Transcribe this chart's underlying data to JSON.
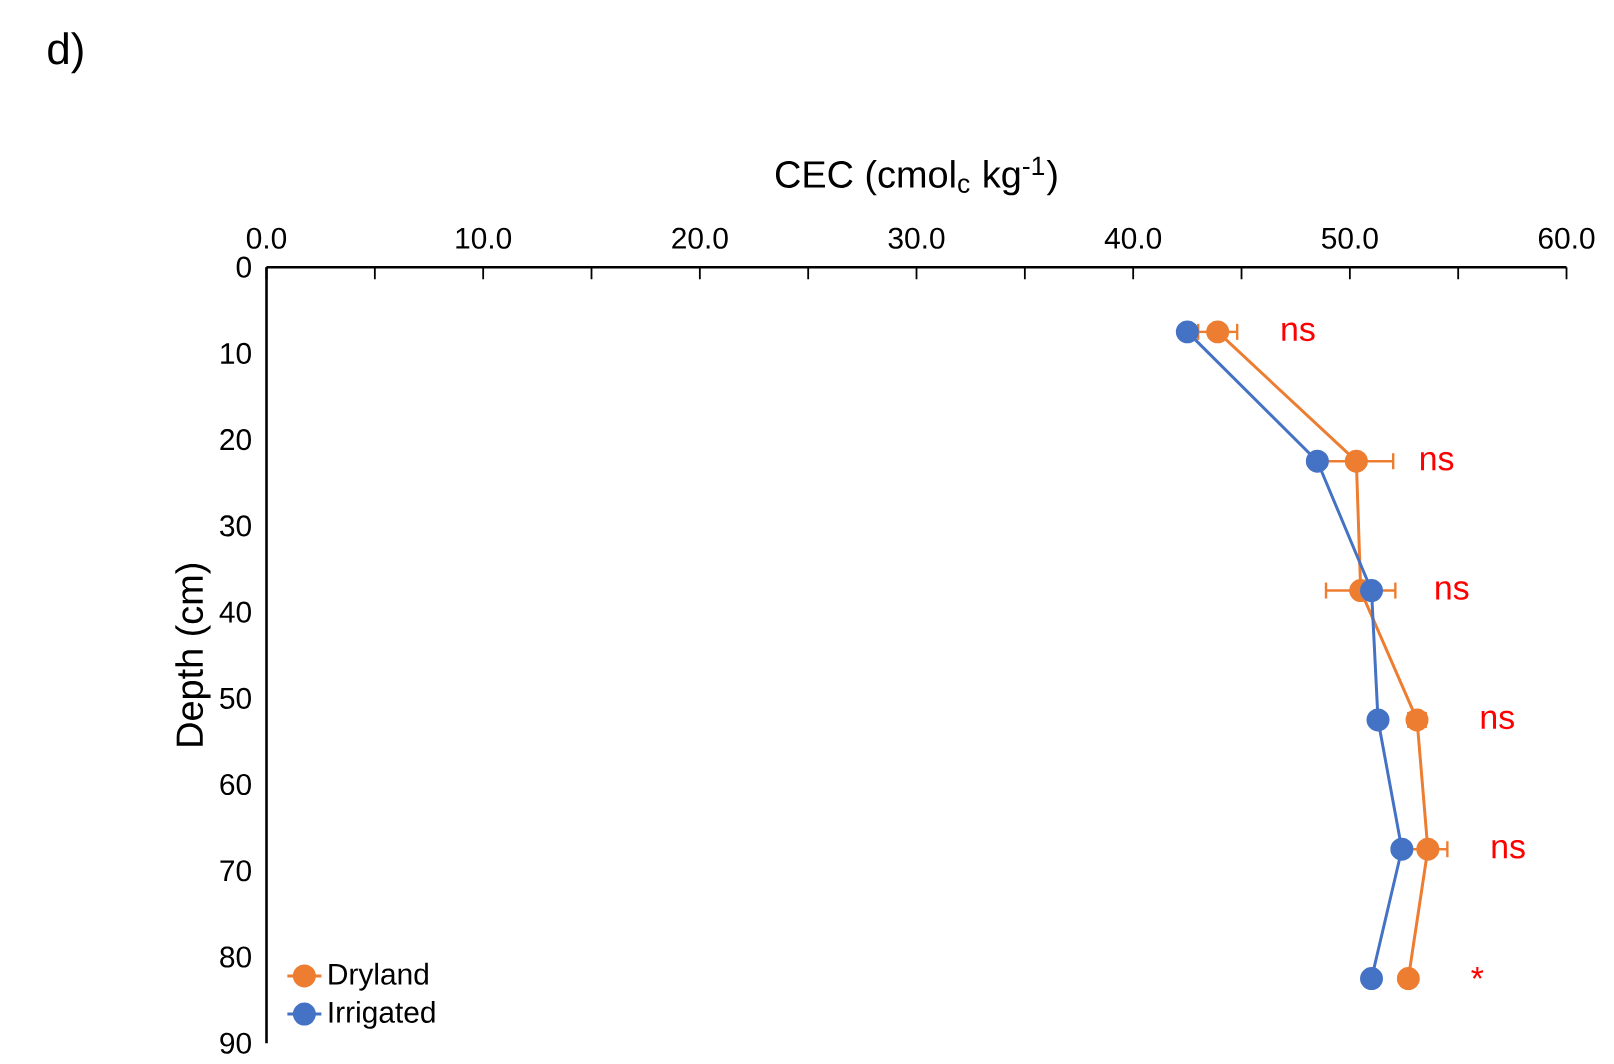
{
  "chart_data": {
    "type": "line",
    "xlabel": "CEC (cmol$_{c}$ kg$^{-1}$)",
    "ylabel": "Depth (cm)",
    "xlim": [
      0,
      60
    ],
    "xticks": [
      {
        "value": 0,
        "label": "0.0"
      },
      {
        "value": 5,
        "label": null
      },
      {
        "value": 10,
        "label": "10.0"
      },
      {
        "value": 15,
        "label": null
      },
      {
        "value": 20,
        "label": "20.0"
      },
      {
        "value": 25,
        "label": null
      },
      {
        "value": 30,
        "label": "30.0"
      },
      {
        "value": 35,
        "label": null
      },
      {
        "value": 40,
        "label": "40.0"
      },
      {
        "value": 45,
        "label": null
      },
      {
        "value": 50,
        "label": "50.0"
      },
      {
        "value": 55,
        "label": null
      },
      {
        "value": 60,
        "label": "60.0"
      }
    ],
    "ylim": [
      90,
      0
    ],
    "yticks": [
      0,
      10,
      20,
      30,
      40,
      50,
      60,
      70,
      80,
      90
    ],
    "series": [
      {
        "name": "Dryland",
        "color": "#ed7d31",
        "x": [
          43.9,
          50.3,
          50.5,
          53.1,
          53.6,
          52.7
        ],
        "values": [
          7.5,
          22.5,
          37.5,
          52.5,
          67.5,
          82.5
        ],
        "xerrors": [
          0.9,
          1.7,
          1.6,
          0.4,
          0.9,
          0.3
        ]
      },
      {
        "name": "Irrigated",
        "color": "#4472c4",
        "x": [
          42.5,
          48.5,
          51.0,
          51.3,
          52.4,
          51.0
        ],
        "values": [
          7.5,
          22.5,
          37.5,
          52.5,
          67.5,
          82.5
        ]
      }
    ],
    "annotations": [
      "d)",
      {
        "text": "ns",
        "x": 43.9,
        "y": 7.5
      },
      {
        "text": "ns",
        "x": 50.3,
        "y": 22.5
      },
      {
        "text": "ns",
        "x": 51.0,
        "y": 37.5
      },
      {
        "text": "ns",
        "x": 53.1,
        "y": 52.5
      },
      {
        "text": "ns",
        "x": 53.6,
        "y": 67.5
      },
      {
        "text": "*",
        "x": 52.7,
        "y": 82.5
      }
    ],
    "legend": "bottom left",
    "marker": "circle",
    "line_style": "solid",
    "grid": false
  }
}
